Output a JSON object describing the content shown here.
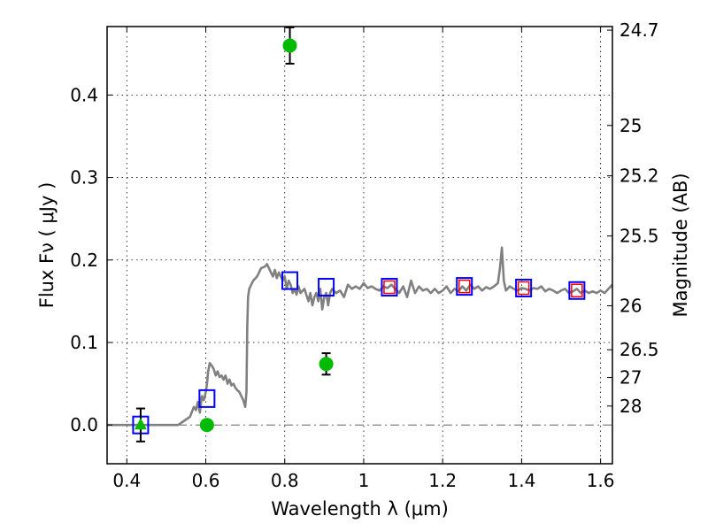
{
  "chart_data": {
    "type": "scatter",
    "title": "",
    "xlabel": "Wavelength  λ (μm)",
    "ylabel": "Flux  Fν  ( μJy )",
    "ylabel_right": "Magnitude (AB)",
    "xlim": [
      0.35,
      1.63
    ],
    "ylim": [
      -0.047,
      0.483
    ],
    "x_ticks": [
      0.4,
      0.6,
      0.8,
      1.0,
      1.2,
      1.4,
      1.6
    ],
    "x_tick_labels": [
      "0.4",
      "0.6",
      "0.8",
      "1",
      "1.2",
      "1.4",
      "1.6"
    ],
    "y_ticks": [
      0.0,
      0.1,
      0.2,
      0.3,
      0.4
    ],
    "y_tick_labels": [
      "0.0",
      "0.1",
      "0.2",
      "0.3",
      "0.4"
    ],
    "right_axis_ticks": [
      {
        "label": "24.7",
        "mag": 24.7
      },
      {
        "label": "25",
        "mag": 25.0
      },
      {
        "label": "25.2",
        "mag": 25.2
      },
      {
        "label": "25.5",
        "mag": 25.5
      },
      {
        "label": "26",
        "mag": 26.0
      },
      {
        "label": "26.5",
        "mag": 26.5
      },
      {
        "label": "27",
        "mag": 27.0
      },
      {
        "label": "28",
        "mag": 28.0
      }
    ],
    "grid": true,
    "colors": {
      "spectrum": "#808080",
      "model_photometry": "#0000ff",
      "model_photometry_inner": "#ff0000",
      "observed": "#00bb00",
      "errorbar": "#000000"
    },
    "spectrum": {
      "x": [
        0.35,
        0.53,
        0.545,
        0.56,
        0.57,
        0.575,
        0.58,
        0.585,
        0.59,
        0.595,
        0.6,
        0.603,
        0.606,
        0.61,
        0.615,
        0.62,
        0.625,
        0.63,
        0.635,
        0.64,
        0.645,
        0.65,
        0.655,
        0.66,
        0.665,
        0.67,
        0.675,
        0.68,
        0.685,
        0.69,
        0.695,
        0.7,
        0.703,
        0.705,
        0.707,
        0.71,
        0.72,
        0.73,
        0.74,
        0.75,
        0.755,
        0.76,
        0.765,
        0.77,
        0.775,
        0.78,
        0.785,
        0.79,
        0.795,
        0.8,
        0.805,
        0.81,
        0.815,
        0.82,
        0.825,
        0.83,
        0.835,
        0.84,
        0.85,
        0.86,
        0.865,
        0.87,
        0.875,
        0.88,
        0.885,
        0.89,
        0.895,
        0.9,
        0.905,
        0.91,
        0.915,
        0.92,
        0.93,
        0.94,
        0.95,
        0.96,
        0.97,
        0.98,
        0.99,
        1.0,
        1.01,
        1.02,
        1.03,
        1.04,
        1.05,
        1.06,
        1.07,
        1.08,
        1.09,
        1.1,
        1.11,
        1.12,
        1.13,
        1.14,
        1.15,
        1.16,
        1.17,
        1.18,
        1.19,
        1.2,
        1.21,
        1.22,
        1.23,
        1.24,
        1.25,
        1.26,
        1.27,
        1.28,
        1.29,
        1.3,
        1.31,
        1.32,
        1.33,
        1.34,
        1.345,
        1.35,
        1.355,
        1.36,
        1.37,
        1.38,
        1.39,
        1.4,
        1.41,
        1.42,
        1.43,
        1.44,
        1.45,
        1.46,
        1.47,
        1.48,
        1.49,
        1.5,
        1.51,
        1.52,
        1.53,
        1.54,
        1.55,
        1.56,
        1.57,
        1.58,
        1.59,
        1.6,
        1.61,
        1.62,
        1.63
      ],
      "y": [
        0.0,
        0.0,
        0.005,
        0.01,
        0.022,
        0.018,
        0.028,
        0.015,
        0.035,
        0.03,
        0.04,
        0.05,
        0.065,
        0.075,
        0.072,
        0.068,
        0.06,
        0.065,
        0.058,
        0.06,
        0.055,
        0.06,
        0.05,
        0.055,
        0.048,
        0.05,
        0.045,
        0.042,
        0.04,
        0.035,
        0.03,
        0.022,
        0.04,
        0.12,
        0.155,
        0.165,
        0.175,
        0.18,
        0.19,
        0.192,
        0.195,
        0.19,
        0.185,
        0.18,
        0.188,
        0.178,
        0.185,
        0.18,
        0.175,
        0.18,
        0.165,
        0.175,
        0.17,
        0.16,
        0.165,
        0.158,
        0.168,
        0.16,
        0.165,
        0.15,
        0.16,
        0.145,
        0.155,
        0.16,
        0.15,
        0.165,
        0.14,
        0.155,
        0.16,
        0.145,
        0.16,
        0.165,
        0.16,
        0.163,
        0.155,
        0.17,
        0.165,
        0.168,
        0.165,
        0.172,
        0.166,
        0.168,
        0.165,
        0.163,
        0.168,
        0.166,
        0.17,
        0.165,
        0.16,
        0.168,
        0.155,
        0.175,
        0.16,
        0.168,
        0.163,
        0.165,
        0.16,
        0.165,
        0.16,
        0.163,
        0.168,
        0.16,
        0.165,
        0.162,
        0.168,
        0.163,
        0.17,
        0.165,
        0.168,
        0.163,
        0.167,
        0.165,
        0.168,
        0.172,
        0.19,
        0.215,
        0.175,
        0.163,
        0.168,
        0.165,
        0.163,
        0.166,
        0.165,
        0.163,
        0.166,
        0.165,
        0.168,
        0.162,
        0.165,
        0.163,
        0.16,
        0.163,
        0.165,
        0.16,
        0.162,
        0.165,
        0.16,
        0.163,
        0.16,
        0.162,
        0.16,
        0.163,
        0.16,
        0.165,
        0.17
      ]
    },
    "series": [
      {
        "marker": "square-outline",
        "color": "#0000ff",
        "x": [
          0.435,
          0.603,
          0.813,
          0.905,
          1.065,
          1.255,
          1.405,
          1.54
        ],
        "y": [
          0.0,
          0.032,
          0.175,
          0.167,
          0.167,
          0.168,
          0.166,
          0.163
        ]
      },
      {
        "marker": "square-outline-inner",
        "color": "#ff0000",
        "x": [
          1.065,
          1.255,
          1.405,
          1.54
        ],
        "y": [
          0.167,
          0.168,
          0.166,
          0.163
        ]
      },
      {
        "marker": "circle",
        "color": "#00bb00",
        "x": [
          0.603,
          0.813,
          0.905
        ],
        "y": [
          0.0,
          0.46,
          0.074
        ],
        "yerr": [
          0.005,
          0.022,
          0.013
        ]
      },
      {
        "marker": "triangle-up",
        "color": "#00bb00",
        "x": [
          0.435
        ],
        "y": [
          0.0
        ],
        "yerr": [
          0.02
        ]
      }
    ]
  }
}
